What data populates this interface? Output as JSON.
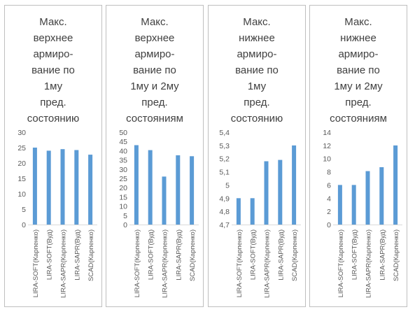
{
  "chart_data": [
    {
      "type": "bar",
      "title": "Макс.\nверхнее\nармиро-\nвание по\n1му\nпред.\nсостоянию",
      "categories": [
        "LIRA-SOFT(Карпенко)",
        "LIRA-SOFT(Вуд)",
        "LIRA-SAPR(Карпенко)",
        "LIRA-SAPR(Вуд)",
        "SCAD(Карпенко)"
      ],
      "values": [
        25,
        24,
        24.5,
        24.2,
        22.7
      ],
      "ylim": [
        0,
        30
      ],
      "yticks": [
        "0",
        "5",
        "10",
        "15",
        "20",
        "25",
        "30"
      ],
      "color": "#5b9bd5"
    },
    {
      "type": "bar",
      "title": "Макс.\nверхнее\nармиро-\nвание по\n1му и 2му\nпред.\nсостояниям",
      "categories": [
        "LIRA-SOFT(Карпенко)",
        "LIRA-SOFT(Вуд)",
        "LIRA-SAPR(Карпенко)",
        "LIRA-SAPR(Вуд)",
        "SCAD(Карпенко)"
      ],
      "values": [
        43,
        40.3,
        26,
        37.5,
        37
      ],
      "ylim": [
        0,
        50
      ],
      "yticks": [
        "0",
        "5",
        "10",
        "15",
        "20",
        "25",
        "30",
        "35",
        "40",
        "45",
        "50"
      ],
      "color": "#5b9bd5"
    },
    {
      "type": "bar",
      "title": "Макс.\nнижнее\nармиро-\nвание по\n1му\nпред.\nсостоянию",
      "categories": [
        "LIRA-SOFT(Карпенко)",
        "LIRA-SOFT(Вуд)",
        "LIRA-SAPR(Карпенко)",
        "LIRA-SAPR(Вуд)",
        "SCAD(Карпенко)"
      ],
      "values": [
        4.9,
        4.9,
        5.18,
        5.19,
        5.3
      ],
      "ylim": [
        4.7,
        5.4
      ],
      "yticks": [
        "4,7",
        "4,8",
        "4,9",
        "5",
        "5,1",
        "5,2",
        "5,3",
        "5,4"
      ],
      "color": "#5b9bd5"
    },
    {
      "type": "bar",
      "title": "Макс.\nнижнее\nармиро-\nвание по\n1му и 2му\nпред.\nсостояниям",
      "categories": [
        "LIRA-SOFT(Карпенко)",
        "LIRA-SOFT(Вуд)",
        "LIRA-SAPR(Карпенко)",
        "LIRA-SAPR(Вуд)",
        "SCAD(Карпенко)"
      ],
      "values": [
        6,
        6,
        8.1,
        8.7,
        12
      ],
      "ylim": [
        0,
        14
      ],
      "yticks": [
        "0",
        "2",
        "4",
        "6",
        "8",
        "10",
        "12",
        "14"
      ],
      "color": "#5b9bd5"
    }
  ]
}
